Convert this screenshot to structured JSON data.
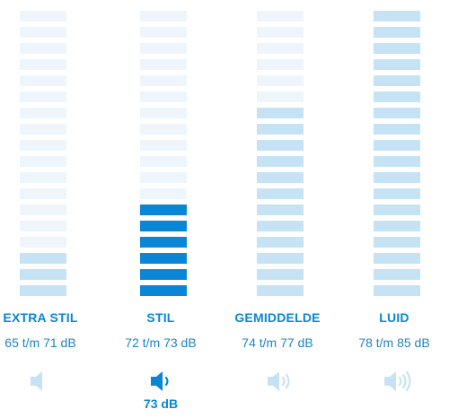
{
  "colors": {
    "accent": "#0a86d6",
    "bar_light": "#eef6fc",
    "bar_mid": "#c6e3f6",
    "icon_light": "#c6e3f6"
  },
  "levels": [
    {
      "label": "EXTRA STIL",
      "range": "65 t/m 71 dB",
      "icon": "speaker-mute-icon",
      "filled_bars": 3,
      "bar_style": "mid",
      "selected": false
    },
    {
      "label": "STIL",
      "range": "72 t/m 73 dB",
      "icon": "speaker-low-icon",
      "filled_bars": 6,
      "bar_style": "active",
      "selected": true
    },
    {
      "label": "GEMIDDELDE",
      "range": "74 t/m 77 dB",
      "icon": "speaker-medium-icon",
      "filled_bars": 12,
      "bar_style": "mid",
      "selected": false
    },
    {
      "label": "LUID",
      "range": "78 t/m 85 dB",
      "icon": "speaker-high-icon",
      "filled_bars": 18,
      "bar_style": "mid",
      "selected": false
    }
  ],
  "current_value": "73 dB"
}
